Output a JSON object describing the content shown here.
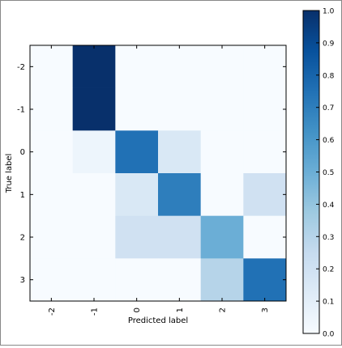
{
  "chart_data": {
    "type": "heatmap",
    "x_categories": [
      "-2",
      "-1",
      "0",
      "1",
      "2",
      "3"
    ],
    "y_categories": [
      "-2",
      "-1",
      "0",
      "1",
      "2",
      "3"
    ],
    "xlabel": "Predicted label",
    "ylabel": "True label",
    "values": [
      [
        0.0,
        1.0,
        0.0,
        0.0,
        0.0,
        0.0
      ],
      [
        0.0,
        1.0,
        0.0,
        0.0,
        0.0,
        0.0
      ],
      [
        0.0,
        0.05,
        0.75,
        0.15,
        0.0,
        0.0
      ],
      [
        0.0,
        0.0,
        0.15,
        0.7,
        0.0,
        0.2
      ],
      [
        0.0,
        0.0,
        0.2,
        0.2,
        0.5,
        0.0
      ],
      [
        0.0,
        0.0,
        0.0,
        0.0,
        0.3,
        0.75
      ]
    ],
    "colorbar": {
      "range": [
        0.0,
        1.0
      ],
      "ticks": [
        "0.0",
        "0.1",
        "0.2",
        "0.3",
        "0.4",
        "0.5",
        "0.6",
        "0.7",
        "0.8",
        "0.9",
        "1.0"
      ],
      "colormap": "Blues"
    },
    "grid": false
  },
  "colors": {
    "low": "#f7fbff",
    "high": "#08306b"
  }
}
